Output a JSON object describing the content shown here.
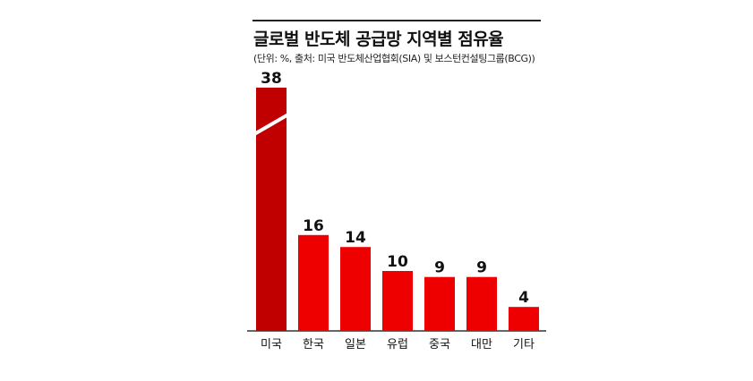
{
  "chart_data": {
    "type": "bar",
    "title": "글로벌 반도체 공급망 지역별 점유율",
    "subtitle": "(단위: %, 출처: 미국 반도체산업협회(SIA) 및 보스턴컨설팅그룹(BCG))",
    "categories": [
      "미국",
      "한국",
      "일본",
      "유럽",
      "중국",
      "대만",
      "기타"
    ],
    "values": [
      38,
      16,
      14,
      10,
      9,
      9,
      4
    ],
    "axis_break_category": "미국",
    "colors": {
      "highlight": "#c00000",
      "bar": "#ee0000",
      "axis": "#333333",
      "rule": "#222222"
    }
  }
}
